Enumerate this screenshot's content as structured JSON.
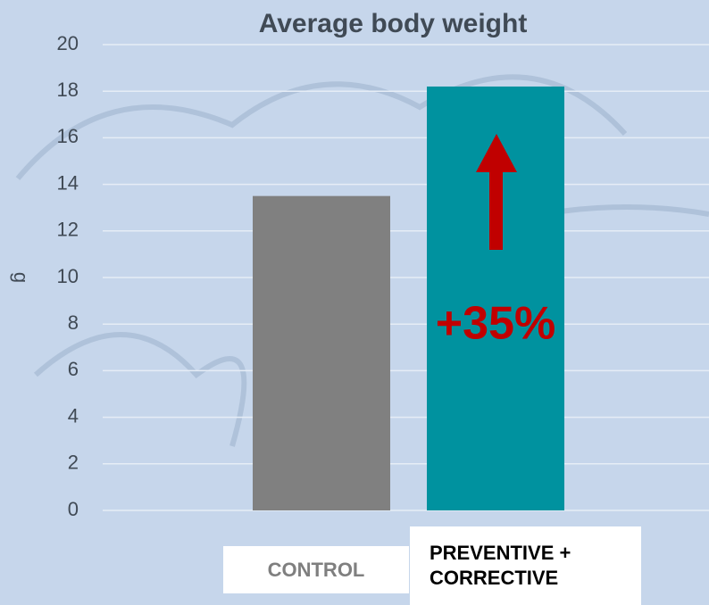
{
  "chart_data": {
    "type": "bar",
    "title": "Average body weight",
    "y_label": "g",
    "categories": [
      "CONTROL",
      "PREVENTIVE + CORRECTIVE"
    ],
    "values": [
      13.5,
      18.2
    ],
    "colors": [
      "#808080",
      "#00929f"
    ],
    "ylim": [
      0,
      20
    ],
    "yticks": [
      0,
      2,
      4,
      6,
      8,
      10,
      12,
      14,
      16,
      18,
      20
    ],
    "grid": true,
    "annotation": "+35%"
  }
}
